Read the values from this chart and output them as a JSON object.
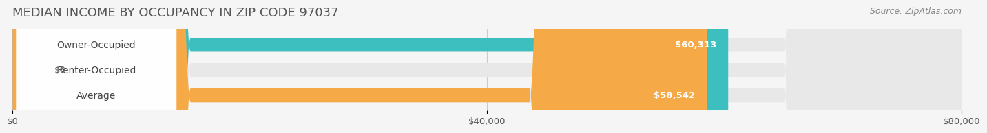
{
  "title": "MEDIAN INCOME BY OCCUPANCY IN ZIP CODE 97037",
  "source": "Source: ZipAtlas.com",
  "categories": [
    "Owner-Occupied",
    "Renter-Occupied",
    "Average"
  ],
  "values": [
    60313,
    0,
    58542
  ],
  "bar_colors": [
    "#3dbfbf",
    "#c9a8d4",
    "#f5a947"
  ],
  "bar_labels": [
    "$60,313",
    "$0",
    "$58,542"
  ],
  "xlim": [
    0,
    80000
  ],
  "xticks": [
    0,
    40000,
    80000
  ],
  "xtick_labels": [
    "$0",
    "$40,000",
    "$80,000"
  ],
  "background_color": "#f0f0f0",
  "bar_bg_color": "#e8e8e8",
  "title_fontsize": 13,
  "source_fontsize": 9,
  "label_fontsize": 10,
  "tick_fontsize": 9.5,
  "bar_height": 0.55,
  "bar_value_fontsize": 9.5
}
